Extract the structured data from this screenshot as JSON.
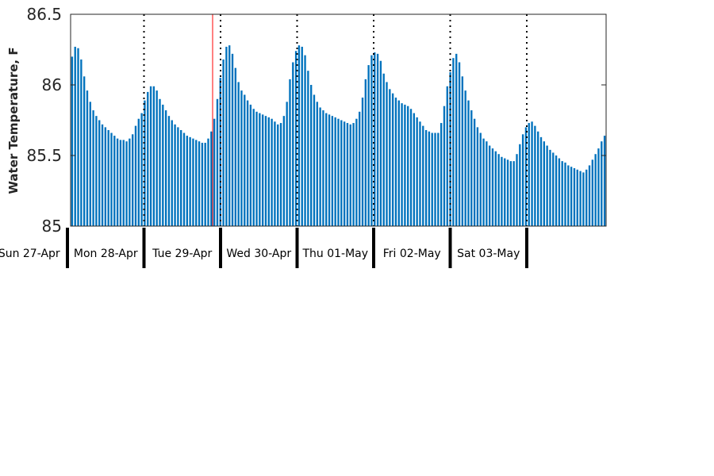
{
  "chart_data": {
    "type": "bar",
    "ylabel": "Water Temperature, F",
    "xlabel": "",
    "ylim": [
      85,
      86.5
    ],
    "ytick_labels": [
      "85",
      "85.5",
      "86",
      "86.5"
    ],
    "bar_color": "#0072bd",
    "marker_color": "#ff0000",
    "day_labels": [
      "Sun 27-Apr",
      "Mon 28-Apr",
      "Tue 29-Apr",
      "Wed 30-Apr",
      "Thu 01-May",
      "Fri 02-May",
      "Sat 03-May"
    ],
    "values": [
      86.2,
      86.27,
      86.26,
      86.18,
      86.06,
      85.96,
      85.88,
      85.82,
      85.78,
      85.75,
      85.72,
      85.7,
      85.68,
      85.66,
      85.64,
      85.62,
      85.61,
      85.61,
      85.6,
      85.62,
      85.65,
      85.71,
      85.76,
      85.8,
      85.89,
      85.95,
      85.99,
      85.99,
      85.96,
      85.9,
      85.86,
      85.82,
      85.78,
      85.75,
      85.72,
      85.7,
      85.68,
      85.66,
      85.64,
      85.63,
      85.62,
      85.61,
      85.6,
      85.59,
      85.59,
      85.62,
      85.67,
      85.76,
      85.9,
      86.05,
      86.18,
      86.27,
      86.28,
      86.22,
      86.12,
      86.02,
      85.96,
      85.93,
      85.89,
      85.86,
      85.83,
      85.81,
      85.8,
      85.79,
      85.78,
      85.77,
      85.76,
      85.74,
      85.72,
      85.73,
      85.78,
      85.88,
      86.04,
      86.16,
      86.24,
      86.28,
      86.27,
      86.21,
      86.1,
      86.0,
      85.93,
      85.88,
      85.84,
      85.82,
      85.8,
      85.79,
      85.78,
      85.77,
      85.76,
      85.75,
      85.74,
      85.73,
      85.72,
      85.73,
      85.76,
      85.81,
      85.91,
      86.04,
      86.14,
      86.21,
      86.23,
      86.22,
      86.17,
      86.08,
      86.02,
      85.97,
      85.94,
      85.91,
      85.89,
      85.87,
      85.86,
      85.85,
      85.83,
      85.8,
      85.77,
      85.74,
      85.71,
      85.68,
      85.67,
      85.66,
      85.66,
      85.66,
      85.73,
      85.85,
      85.99,
      86.09,
      86.19,
      86.22,
      86.16,
      86.06,
      85.96,
      85.89,
      85.82,
      85.76,
      85.7,
      85.66,
      85.62,
      85.6,
      85.57,
      85.55,
      85.53,
      85.51,
      85.49,
      85.48,
      85.47,
      85.46,
      85.46,
      85.51,
      85.58,
      85.65,
      85.7,
      85.73,
      85.74,
      85.71,
      85.67,
      85.63,
      85.6,
      85.57,
      85.54,
      85.52,
      85.5,
      85.48,
      85.46,
      85.45,
      85.43,
      85.42,
      85.41,
      85.4,
      85.39,
      85.38,
      85.4,
      85.43,
      85.47,
      85.51,
      85.55,
      85.6,
      85.64
    ]
  }
}
